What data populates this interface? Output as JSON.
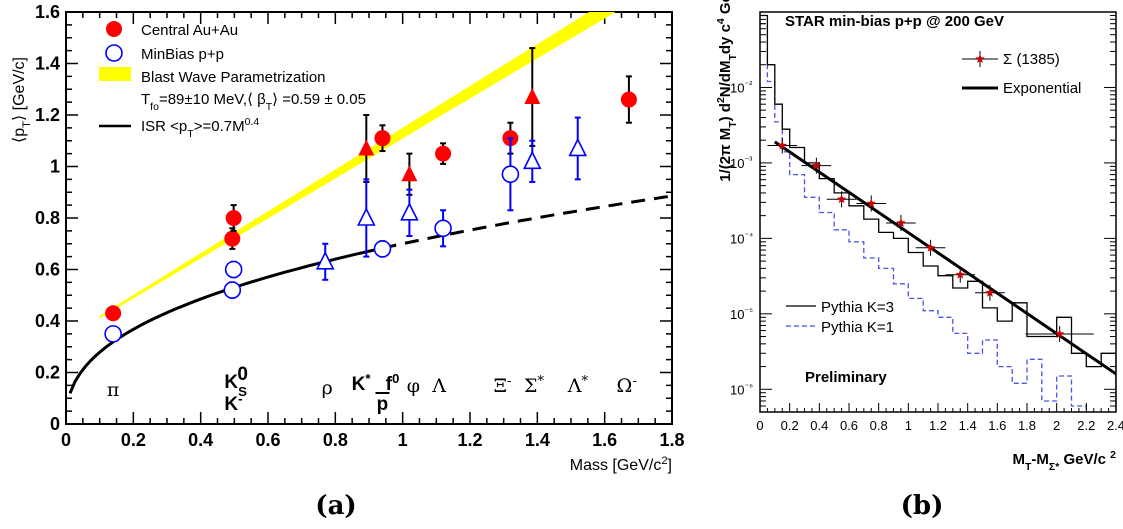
{
  "chart_data": [
    {
      "panel": "(a)",
      "type": "scatter",
      "xlabel": "Mass [GeV/c²]",
      "ylabel": "⟨p_T⟩ [GeV/c]",
      "xlim": [
        0,
        1.8
      ],
      "ylim": [
        0,
        1.6
      ],
      "xticks": [
        "0",
        "0.2",
        "0.4",
        "0.6",
        "0.8",
        "1",
        "1.2",
        "1.4",
        "1.6",
        "1.8"
      ],
      "yticks": [
        "0",
        "0.2",
        "0.4",
        "0.6",
        "0.8",
        "1",
        "1.2",
        "1.4",
        "1.6"
      ],
      "legend": {
        "central": "Central Au+Au",
        "minbias": "MinBias p+p",
        "blast": "Blast Wave Parametrization",
        "blast_params": "T_fo=89±10 MeV,⟨ β_T⟩ =0.59 ± 0.05",
        "isr": "ISR <p_T>=0.7M^0.4"
      },
      "particles": [
        "π",
        "K⁰ₛ",
        "K⁻",
        "ρ",
        "K*",
        "p̄",
        "f⁰",
        "φ",
        "Λ",
        "Ξ⁻",
        "Σ*",
        "Λ*",
        "Ω⁻"
      ],
      "series": [
        {
          "name": "Central Au+Au",
          "marker": "circle-filled",
          "color": "#ff0000",
          "x": [
            0.14,
            0.494,
            0.498,
            0.94,
            1.12,
            1.32,
            1.672
          ],
          "y": [
            0.43,
            0.72,
            0.8,
            1.11,
            1.05,
            1.11,
            1.26
          ],
          "err": [
            0.02,
            0.04,
            0.05,
            0.05,
            0.04,
            0.06,
            0.09
          ]
        },
        {
          "name": "Central Au+Au",
          "marker": "triangle-filled",
          "color": "#ff0000",
          "x": [
            0.892,
            1.02,
            1.385
          ],
          "y": [
            1.07,
            0.97,
            1.27
          ],
          "err": [
            0.13,
            0.08,
            0.19
          ]
        },
        {
          "name": "MinBias p+p",
          "marker": "circle-open",
          "color": "#0000ff",
          "x": [
            0.14,
            0.494,
            0.498,
            0.94,
            1.12,
            1.32
          ],
          "y": [
            0.35,
            0.52,
            0.6,
            0.68,
            0.76,
            0.97
          ],
          "err": [
            0.02,
            0.03,
            0.03,
            0.03,
            0.07,
            0.14
          ]
        },
        {
          "name": "MinBias p+p",
          "marker": "triangle-open",
          "color": "#0000ff",
          "x": [
            0.77,
            0.892,
            1.02,
            1.385,
            1.52
          ],
          "y": [
            0.63,
            0.8,
            0.82,
            1.02,
            1.07
          ],
          "err": [
            0.07,
            0.15,
            0.09,
            0.08,
            0.12
          ]
        }
      ],
      "blast_band": {
        "x": [
          0.1,
          1.8
        ],
        "y_low": [
          0.41,
          1.73
        ],
        "y_high": [
          0.42,
          1.8
        ]
      },
      "isr_curve": {
        "formula": "0.7*M^0.4",
        "solid_range": [
          0,
          0.94
        ],
        "dashed_range": [
          0.94,
          1.8
        ]
      }
    },
    {
      "panel": "(b)",
      "type": "line",
      "title": "STAR min-bias p+p @ 200 GeV",
      "xlabel": "M_T-M_Σ* GeV/c²",
      "ylabel": "1/(2π M_T) d²N/(dM_T dy) c⁴/GeV²",
      "xlim": [
        0,
        2.4
      ],
      "ylim": [
        5e-07,
        0.1
      ],
      "yscale": "log",
      "xticks": [
        "0",
        "0.2",
        "0.4",
        "0.6",
        "0.8",
        "1",
        "1.2",
        "1.4",
        "1.6",
        "1.8",
        "2",
        "2.2",
        "2.4"
      ],
      "yticks": [
        "10⁻⁶",
        "10⁻⁵",
        "10⁻⁴",
        "10⁻³",
        "10⁻²"
      ],
      "legend": {
        "sigma": "Σ (1385)",
        "exponential": "Exponential",
        "k3": "Pythia K=3",
        "k1": "Pythia K=1"
      },
      "watermark": "Preliminary",
      "series": [
        {
          "name": "Σ (1385)",
          "marker": "star",
          "color": "#cc0000",
          "x": [
            0.15,
            0.38,
            0.55,
            0.75,
            0.95,
            1.15,
            1.35,
            1.55,
            2.02
          ],
          "y": [
            0.0017,
            0.00092,
            0.00033,
            0.00029,
            0.00016,
            7.5e-05,
            3.3e-05,
            1.9e-05,
            5.4e-06
          ],
          "xerr": [
            0.1,
            0.1,
            0.1,
            0.1,
            0.1,
            0.1,
            0.1,
            0.1,
            0.23
          ]
        },
        {
          "name": "Exponential",
          "style": "solid-thick",
          "color": "#000000",
          "x": [
            0.1,
            2.4
          ],
          "y": [
            0.0019,
            1.6e-06
          ]
        },
        {
          "name": "Pythia K=3",
          "style": "step",
          "color": "#000000",
          "x": [
            0,
            0.05,
            0.1,
            0.15,
            0.2,
            0.3,
            0.4,
            0.5,
            0.6,
            0.7,
            0.8,
            0.9,
            1.0,
            1.1,
            1.2,
            1.3,
            1.4,
            1.5,
            1.6,
            1.7,
            1.8,
            1.9,
            2.0,
            2.1,
            2.2,
            2.3,
            2.4
          ],
          "y": [
            0.09,
            0.02,
            0.006,
            0.0028,
            0.0016,
            0.001,
            0.00062,
            0.0004,
            0.00027,
            0.00018,
            0.00012,
            0.0001,
            6.5e-05,
            4.3e-05,
            3.2e-05,
            2.2e-05,
            2.7e-05,
            1.2e-05,
            8e-06,
            1.4e-05,
            5e-06,
            5e-06,
            9e-06,
            3e-06,
            2e-06,
            3e-06,
            5e-07
          ]
        },
        {
          "name": "Pythia K=1",
          "style": "dashed-step",
          "color": "#4a55e0",
          "x": [
            0,
            0.05,
            0.1,
            0.15,
            0.2,
            0.3,
            0.4,
            0.5,
            0.6,
            0.7,
            0.8,
            0.9,
            1.0,
            1.1,
            1.2,
            1.3,
            1.4,
            1.5,
            1.6,
            1.7,
            1.8,
            1.9,
            2.0,
            2.1,
            2.2
          ],
          "y": [
            0.07,
            0.012,
            0.0035,
            0.0014,
            0.0007,
            0.00035,
            0.00022,
            0.00013,
            9e-05,
            5.5e-05,
            4e-05,
            2.5e-05,
            1.6e-05,
            1.1e-05,
            9e-06,
            5.5e-06,
            3e-06,
            4.5e-06,
            2e-06,
            1.2e-06,
            2.5e-06,
            7e-07,
            1.5e-06,
            6e-07,
            5e-07
          ]
        }
      ]
    }
  ]
}
